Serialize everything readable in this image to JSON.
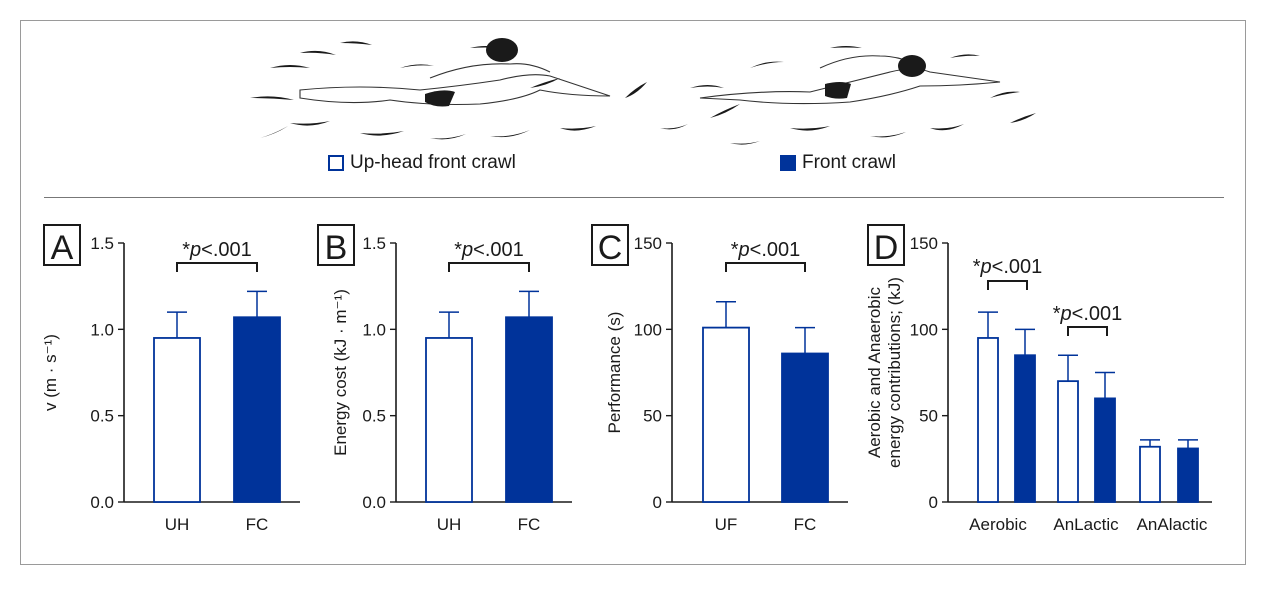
{
  "colors": {
    "navy": "#00339a",
    "axis": "#1a1a1a",
    "white": "#ffffff"
  },
  "legend": [
    {
      "label": "Up-head front crawl",
      "swatch": "outline"
    },
    {
      "label": "Front crawl",
      "swatch": "filled"
    }
  ],
  "chart_data": [
    {
      "panel": "A",
      "type": "bar",
      "ylabel": "v (m · s⁻¹)",
      "ylim": [
        0,
        1.5
      ],
      "yticks": [
        "0.0",
        "0.5",
        "1.0",
        "1.5"
      ],
      "categories": [
        "UH",
        "FC"
      ],
      "values": [
        0.95,
        1.07
      ],
      "errors": [
        0.15,
        0.15
      ],
      "fills": [
        "outline",
        "filled"
      ],
      "annotations": [
        {
          "star": "*",
          "text": "p<.001",
          "from": 0,
          "to": 1
        }
      ]
    },
    {
      "panel": "B",
      "type": "bar",
      "ylabel": "Energy cost (kJ · m⁻¹)",
      "ylim": [
        0,
        1.5
      ],
      "yticks": [
        "0.0",
        "0.5",
        "1.0",
        "1.5"
      ],
      "categories": [
        "UH",
        "FC"
      ],
      "values": [
        0.95,
        1.07
      ],
      "errors": [
        0.15,
        0.15
      ],
      "fills": [
        "outline",
        "filled"
      ],
      "annotations": [
        {
          "star": "*",
          "text": "p<.001",
          "from": 0,
          "to": 1
        }
      ]
    },
    {
      "panel": "C",
      "type": "bar",
      "ylabel": "Performance (s)",
      "ylim": [
        0,
        150
      ],
      "yticks": [
        "0",
        "50",
        "100",
        "150"
      ],
      "categories": [
        "UF",
        "FC"
      ],
      "values": [
        101,
        86
      ],
      "errors": [
        15,
        15
      ],
      "fills": [
        "outline",
        "filled"
      ],
      "annotations": [
        {
          "star": "*",
          "text": "p<.001",
          "from": 0,
          "to": 1
        }
      ]
    },
    {
      "panel": "D",
      "type": "bar",
      "ylabel": "Aerobic and Anaerobic",
      "ylabel2": "energy contributions; (kJ)",
      "ylim": [
        0,
        150
      ],
      "yticks": [
        "0",
        "50",
        "100",
        "150"
      ],
      "categories": [
        "Aerobic",
        "AnLactic",
        "AnAlactic"
      ],
      "series": [
        {
          "name": "Up-head front crawl",
          "fill": "outline",
          "values": [
            95,
            70,
            32
          ],
          "errors": [
            15,
            15,
            4
          ]
        },
        {
          "name": "Front crawl",
          "fill": "filled",
          "values": [
            85,
            60,
            31
          ],
          "errors": [
            15,
            15,
            5
          ]
        }
      ],
      "annotations": [
        {
          "star": "*",
          "text": "p<.001",
          "group": 0
        },
        {
          "star": "*",
          "text": "p<.001",
          "group": 1
        }
      ]
    }
  ]
}
